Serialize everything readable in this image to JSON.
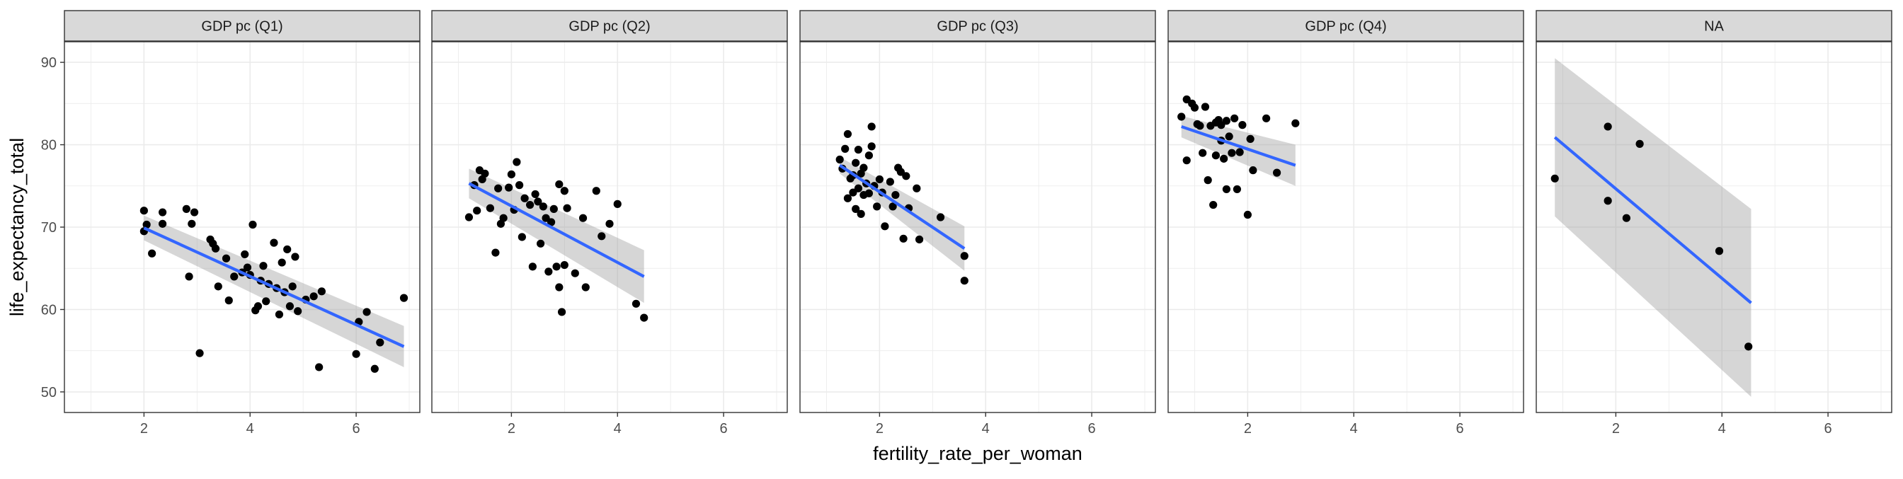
{
  "chart_data": {
    "type": "scatter",
    "facets": [
      {
        "label": "GDP pc (Q1)",
        "points": [
          [
            2.0,
            72.0
          ],
          [
            2.0,
            69.5
          ],
          [
            2.05,
            70.3
          ],
          [
            2.15,
            66.8
          ],
          [
            2.35,
            71.8
          ],
          [
            2.35,
            70.4
          ],
          [
            2.8,
            72.2
          ],
          [
            2.85,
            64.0
          ],
          [
            2.9,
            70.4
          ],
          [
            2.95,
            71.8
          ],
          [
            3.05,
            54.7
          ],
          [
            3.25,
            68.5
          ],
          [
            3.3,
            68.0
          ],
          [
            3.35,
            67.4
          ],
          [
            3.4,
            62.8
          ],
          [
            3.55,
            66.2
          ],
          [
            3.6,
            61.1
          ],
          [
            3.7,
            64.0
          ],
          [
            3.85,
            64.5
          ],
          [
            3.9,
            66.7
          ],
          [
            3.95,
            65.1
          ],
          [
            4.0,
            64.2
          ],
          [
            4.05,
            70.3
          ],
          [
            4.1,
            59.9
          ],
          [
            4.15,
            60.4
          ],
          [
            4.2,
            63.5
          ],
          [
            4.25,
            65.3
          ],
          [
            4.3,
            61.0
          ],
          [
            4.35,
            63.1
          ],
          [
            4.45,
            68.1
          ],
          [
            4.5,
            62.6
          ],
          [
            4.55,
            59.4
          ],
          [
            4.6,
            65.7
          ],
          [
            4.65,
            62.1
          ],
          [
            4.7,
            67.3
          ],
          [
            4.75,
            60.4
          ],
          [
            4.8,
            62.8
          ],
          [
            4.85,
            66.4
          ],
          [
            4.9,
            59.8
          ],
          [
            5.05,
            61.2
          ],
          [
            5.2,
            61.6
          ],
          [
            5.3,
            53.0
          ],
          [
            5.35,
            62.2
          ],
          [
            6.0,
            54.6
          ],
          [
            6.05,
            58.5
          ],
          [
            6.2,
            59.7
          ],
          [
            6.35,
            52.8
          ],
          [
            6.45,
            56.0
          ],
          [
            6.9,
            61.4
          ]
        ],
        "fit": {
          "x": [
            2.0,
            6.9
          ],
          "y": [
            69.9,
            55.5
          ],
          "ci_low": [
            68.4,
            53.0
          ],
          "ci_high": [
            71.4,
            58.0
          ]
        }
      },
      {
        "label": "GDP pc (Q2)",
        "points": [
          [
            1.2,
            71.2
          ],
          [
            1.3,
            75.1
          ],
          [
            1.35,
            72.0
          ],
          [
            1.4,
            76.9
          ],
          [
            1.45,
            75.8
          ],
          [
            1.5,
            76.5
          ],
          [
            1.6,
            72.3
          ],
          [
            1.7,
            66.9
          ],
          [
            1.75,
            74.7
          ],
          [
            1.8,
            70.4
          ],
          [
            1.85,
            71.1
          ],
          [
            1.95,
            74.8
          ],
          [
            2.0,
            76.4
          ],
          [
            2.05,
            72.1
          ],
          [
            2.1,
            77.9
          ],
          [
            2.15,
            75.1
          ],
          [
            2.2,
            68.8
          ],
          [
            2.25,
            73.5
          ],
          [
            2.35,
            72.7
          ],
          [
            2.4,
            65.2
          ],
          [
            2.45,
            74.0
          ],
          [
            2.5,
            73.1
          ],
          [
            2.55,
            68.0
          ],
          [
            2.6,
            72.5
          ],
          [
            2.65,
            71.1
          ],
          [
            2.7,
            64.6
          ],
          [
            2.75,
            70.6
          ],
          [
            2.8,
            72.2
          ],
          [
            2.85,
            65.2
          ],
          [
            2.9,
            62.7
          ],
          [
            2.9,
            75.2
          ],
          [
            2.95,
            59.7
          ],
          [
            3.0,
            65.4
          ],
          [
            3.0,
            74.4
          ],
          [
            3.05,
            72.3
          ],
          [
            3.2,
            64.4
          ],
          [
            3.35,
            71.1
          ],
          [
            3.4,
            62.7
          ],
          [
            3.6,
            74.4
          ],
          [
            3.7,
            68.9
          ],
          [
            3.85,
            70.4
          ],
          [
            4.0,
            72.8
          ],
          [
            4.35,
            60.7
          ],
          [
            4.5,
            59.0
          ]
        ],
        "fit": {
          "x": [
            1.2,
            4.5
          ],
          "y": [
            75.3,
            64.0
          ],
          "ci_low": [
            73.5,
            60.8
          ],
          "ci_high": [
            77.1,
            67.2
          ]
        }
      },
      {
        "label": "GDP pc (Q3)",
        "points": [
          [
            1.25,
            78.2
          ],
          [
            1.3,
            77.1
          ],
          [
            1.35,
            79.5
          ],
          [
            1.4,
            81.3
          ],
          [
            1.4,
            73.5
          ],
          [
            1.45,
            75.9
          ],
          [
            1.5,
            76.3
          ],
          [
            1.5,
            74.2
          ],
          [
            1.55,
            77.8
          ],
          [
            1.55,
            72.2
          ],
          [
            1.6,
            79.4
          ],
          [
            1.6,
            74.7
          ],
          [
            1.65,
            71.6
          ],
          [
            1.65,
            76.5
          ],
          [
            1.7,
            73.9
          ],
          [
            1.7,
            77.2
          ],
          [
            1.75,
            75.3
          ],
          [
            1.8,
            78.7
          ],
          [
            1.8,
            74.1
          ],
          [
            1.85,
            82.2
          ],
          [
            1.85,
            79.8
          ],
          [
            1.9,
            75.0
          ],
          [
            1.95,
            72.5
          ],
          [
            2.0,
            75.8
          ],
          [
            2.05,
            74.2
          ],
          [
            2.1,
            70.1
          ],
          [
            2.2,
            75.5
          ],
          [
            2.25,
            72.5
          ],
          [
            2.3,
            73.9
          ],
          [
            2.35,
            77.2
          ],
          [
            2.4,
            76.7
          ],
          [
            2.45,
            68.6
          ],
          [
            2.5,
            76.2
          ],
          [
            2.55,
            72.3
          ],
          [
            2.7,
            74.7
          ],
          [
            2.75,
            68.5
          ],
          [
            3.15,
            71.2
          ],
          [
            3.6,
            66.5
          ],
          [
            3.6,
            63.5
          ]
        ],
        "fit": {
          "x": [
            1.25,
            3.6
          ],
          "y": [
            77.5,
            67.4
          ],
          "ci_low": [
            76.5,
            64.7
          ],
          "ci_high": [
            78.5,
            70.1
          ]
        }
      },
      {
        "label": "GDP pc (Q4)",
        "points": [
          [
            0.75,
            83.4
          ],
          [
            0.85,
            85.5
          ],
          [
            0.85,
            78.1
          ],
          [
            0.95,
            85.0
          ],
          [
            1.0,
            84.5
          ],
          [
            1.05,
            82.5
          ],
          [
            1.1,
            82.3
          ],
          [
            1.15,
            79.0
          ],
          [
            1.2,
            84.6
          ],
          [
            1.25,
            75.7
          ],
          [
            1.3,
            82.3
          ],
          [
            1.35,
            72.7
          ],
          [
            1.4,
            78.7
          ],
          [
            1.4,
            82.7
          ],
          [
            1.45,
            83.0
          ],
          [
            1.5,
            82.4
          ],
          [
            1.5,
            80.5
          ],
          [
            1.55,
            78.3
          ],
          [
            1.6,
            74.6
          ],
          [
            1.6,
            82.9
          ],
          [
            1.65,
            81.0
          ],
          [
            1.7,
            79.0
          ],
          [
            1.75,
            83.2
          ],
          [
            1.8,
            74.6
          ],
          [
            1.85,
            79.1
          ],
          [
            1.9,
            82.4
          ],
          [
            2.0,
            71.5
          ],
          [
            2.05,
            80.7
          ],
          [
            2.1,
            76.9
          ],
          [
            2.35,
            83.2
          ],
          [
            2.55,
            76.6
          ],
          [
            2.9,
            82.6
          ]
        ],
        "fit": {
          "x": [
            0.75,
            2.9
          ],
          "y": [
            82.2,
            77.5
          ],
          "ci_low": [
            80.9,
            75.0
          ],
          "ci_high": [
            83.5,
            80.0
          ]
        }
      },
      {
        "label": "NA",
        "points": [
          [
            0.85,
            75.9
          ],
          [
            1.85,
            82.2
          ],
          [
            1.85,
            73.2
          ],
          [
            2.2,
            71.1
          ],
          [
            2.45,
            80.1
          ],
          [
            3.95,
            67.1
          ],
          [
            4.5,
            55.5
          ]
        ],
        "fit": {
          "x": [
            0.85,
            4.55
          ],
          "y": [
            80.9,
            60.8
          ],
          "ci_low": [
            71.3,
            49.4
          ],
          "ci_high": [
            90.5,
            72.2
          ]
        }
      }
    ],
    "x_ticks": [
      2,
      4,
      6
    ],
    "y_ticks": [
      50,
      60,
      70,
      80,
      90
    ],
    "xlim": [
      0.5,
      7.2
    ],
    "ylim": [
      47.5,
      92.5
    ],
    "xlabel": "fertility_rate_per_woman",
    "ylabel": "life_expectancy_total",
    "grid": true,
    "smooth": "lm",
    "colors": {
      "points": "#000000",
      "fit_line": "#3366FF",
      "ci_band": "#999999",
      "strip_fill": "#D9D9D9",
      "grid": "#EBEBEB",
      "panel_border": "#333333"
    }
  }
}
